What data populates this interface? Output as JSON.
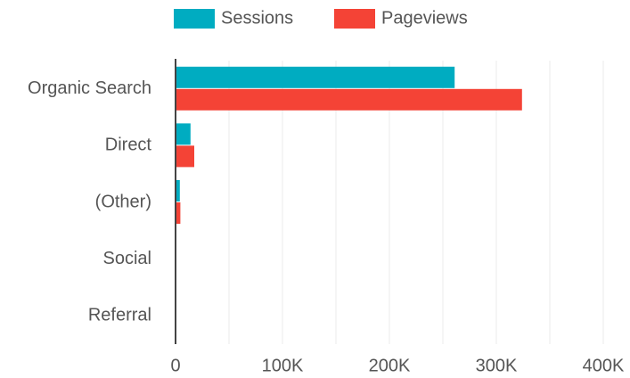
{
  "chart_data": {
    "type": "hbar",
    "categories": [
      "Organic Search",
      "Direct",
      "(Other)",
      "Social",
      "Referral"
    ],
    "series": [
      {
        "name": "Sessions",
        "color": "#00acc1",
        "values": [
          261000,
          14000,
          4000,
          300,
          200
        ]
      },
      {
        "name": "Pageviews",
        "color": "#f44336",
        "values": [
          324000,
          17500,
          4500,
          400,
          300
        ]
      }
    ],
    "xlim": [
      0,
      400000
    ],
    "xticks": [
      0,
      {
        "value": 100000,
        "label": "100K"
      },
      {
        "value": 200000,
        "label": "200K"
      },
      {
        "value": 300000,
        "label": "300K"
      },
      {
        "value": 400000,
        "label": "400K"
      }
    ],
    "xminor": [
      50000,
      150000,
      250000,
      350000
    ],
    "grid": true,
    "legend": "top"
  }
}
